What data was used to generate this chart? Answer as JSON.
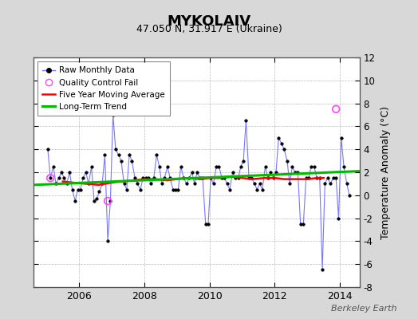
{
  "title": "MYKOLAIV",
  "subtitle": "47.050 N, 31.917 E (Ukraine)",
  "ylabel": "Temperature Anomaly (°C)",
  "watermark": "Berkeley Earth",
  "xlim": [
    2004.6,
    2014.6
  ],
  "ylim": [
    -8,
    12
  ],
  "yticks": [
    -8,
    -6,
    -4,
    -2,
    0,
    2,
    4,
    6,
    8,
    10,
    12
  ],
  "xticks": [
    2006,
    2008,
    2010,
    2012,
    2014
  ],
  "bg_color": "#d8d8d8",
  "plot_bg_color": "#ffffff",
  "raw_line_color": "#7777ff",
  "raw_marker_color": "#000000",
  "ma_color": "#ff0000",
  "trend_color": "#00bb00",
  "qc_color": "#ff44ff",
  "raw_data_x": [
    2005.04,
    2005.12,
    2005.21,
    2005.29,
    2005.38,
    2005.46,
    2005.54,
    2005.62,
    2005.71,
    2005.79,
    2005.88,
    2005.96,
    2006.04,
    2006.12,
    2006.21,
    2006.29,
    2006.38,
    2006.46,
    2006.54,
    2006.62,
    2006.71,
    2006.79,
    2006.88,
    2006.96,
    2007.04,
    2007.12,
    2007.21,
    2007.29,
    2007.38,
    2007.46,
    2007.54,
    2007.62,
    2007.71,
    2007.79,
    2007.88,
    2007.96,
    2008.04,
    2008.12,
    2008.21,
    2008.29,
    2008.38,
    2008.46,
    2008.54,
    2008.62,
    2008.71,
    2008.79,
    2008.88,
    2008.96,
    2009.04,
    2009.12,
    2009.21,
    2009.29,
    2009.38,
    2009.46,
    2009.54,
    2009.62,
    2009.71,
    2009.79,
    2009.88,
    2009.96,
    2010.04,
    2010.12,
    2010.21,
    2010.29,
    2010.38,
    2010.46,
    2010.54,
    2010.62,
    2010.71,
    2010.79,
    2010.88,
    2010.96,
    2011.04,
    2011.12,
    2011.21,
    2011.29,
    2011.38,
    2011.46,
    2011.54,
    2011.62,
    2011.71,
    2011.79,
    2011.88,
    2011.96,
    2012.04,
    2012.12,
    2012.21,
    2012.29,
    2012.38,
    2012.46,
    2012.54,
    2012.62,
    2012.71,
    2012.79,
    2012.88,
    2012.96,
    2013.04,
    2013.12,
    2013.21,
    2013.29,
    2013.38,
    2013.46,
    2013.54,
    2013.62,
    2013.71,
    2013.79,
    2013.88,
    2013.96,
    2014.04,
    2014.12,
    2014.21,
    2014.29
  ],
  "raw_data_y": [
    4.0,
    1.5,
    2.5,
    1.0,
    1.5,
    2.0,
    1.5,
    1.0,
    2.0,
    0.5,
    -0.5,
    0.5,
    0.5,
    1.5,
    2.0,
    1.0,
    2.5,
    -0.5,
    -0.3,
    0.3,
    1.0,
    3.5,
    -4.0,
    -0.5,
    7.0,
    4.0,
    3.5,
    3.0,
    1.0,
    0.5,
    3.5,
    3.0,
    1.5,
    1.0,
    0.5,
    1.5,
    1.5,
    1.5,
    1.0,
    1.5,
    3.5,
    2.5,
    1.0,
    1.5,
    2.5,
    1.5,
    0.5,
    0.5,
    0.5,
    2.5,
    1.5,
    1.0,
    1.5,
    2.0,
    1.0,
    2.0,
    1.5,
    1.5,
    -2.5,
    -2.5,
    1.5,
    1.0,
    2.5,
    2.5,
    1.5,
    1.5,
    1.0,
    0.5,
    2.0,
    1.5,
    1.5,
    2.5,
    3.0,
    6.5,
    1.5,
    1.5,
    1.0,
    0.5,
    1.0,
    0.5,
    2.5,
    1.5,
    2.0,
    1.5,
    2.0,
    5.0,
    4.5,
    4.0,
    3.0,
    1.0,
    2.5,
    2.0,
    2.0,
    -2.5,
    -2.5,
    1.5,
    1.5,
    2.5,
    2.5,
    1.5,
    1.5,
    -6.5,
    1.0,
    1.5,
    1.0,
    1.5,
    1.5,
    -2.0,
    5.0,
    2.5,
    1.0,
    0.0
  ],
  "ma_x": [
    2005.5,
    2005.8,
    2006.2,
    2006.6,
    2007.0,
    2007.3,
    2007.7,
    2008.0,
    2008.3,
    2008.7,
    2009.0,
    2009.3,
    2009.7,
    2010.0,
    2010.3,
    2010.7,
    2011.0,
    2011.3,
    2011.7,
    2012.0,
    2012.3,
    2012.7,
    2013.0,
    2013.3,
    2013.5
  ],
  "ma_y": [
    1.2,
    1.1,
    1.0,
    0.9,
    1.1,
    1.2,
    1.3,
    1.4,
    1.4,
    1.3,
    1.4,
    1.5,
    1.4,
    1.5,
    1.5,
    1.6,
    1.5,
    1.4,
    1.5,
    1.5,
    1.4,
    1.4,
    1.4,
    1.5,
    1.5
  ],
  "trend_x": [
    2004.6,
    2014.6
  ],
  "trend_y": [
    0.9,
    2.1
  ],
  "qc_points_x": [
    2005.12,
    2006.88,
    2013.88
  ],
  "qc_points_y": [
    1.5,
    -0.5,
    7.5
  ]
}
